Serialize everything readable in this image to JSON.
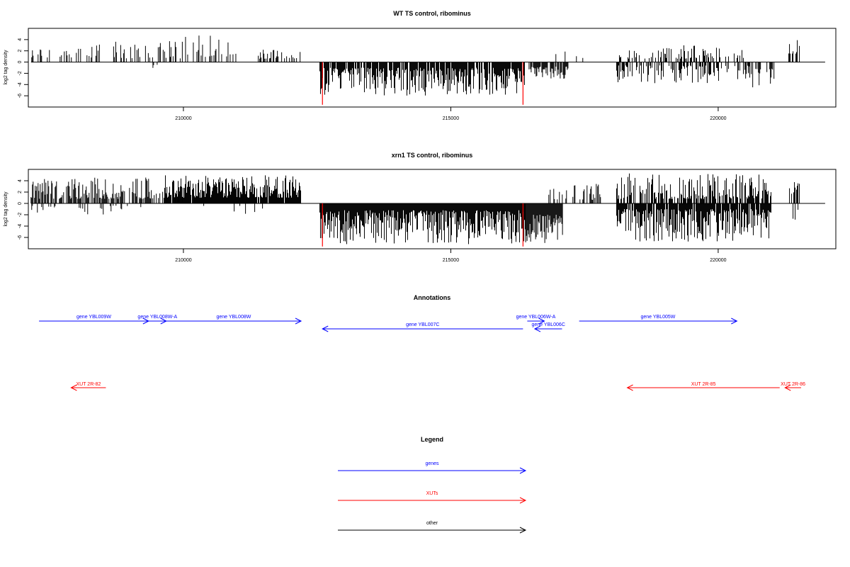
{
  "chart_data": [
    {
      "type": "bar",
      "title": "WT TS control, ribominus",
      "ylabel": "log2 tag density",
      "xlabel": "",
      "xlim": [
        207100,
        222200
      ],
      "ylim": [
        -8,
        6
      ],
      "x_ticks": [
        "210000",
        "215000",
        "220000"
      ],
      "x_tick_values": [
        210000,
        215000,
        220000
      ],
      "y_ticks": [
        "4",
        "2",
        "0",
        "-2",
        "-4",
        "-6"
      ],
      "y_tick_values": [
        4,
        2,
        0,
        -2,
        -4,
        -6
      ],
      "segments": [
        {
          "x0": 207150,
          "x1": 208350,
          "sign": 1,
          "min": 0.8,
          "max": 2.8,
          "density": 0.3,
          "seed": 11
        },
        {
          "x0": 208350,
          "x1": 210000,
          "sign": 1,
          "min": 0.6,
          "max": 3.8,
          "density": 0.25,
          "seed": 12
        },
        {
          "x0": 208900,
          "x1": 209900,
          "sign": -1,
          "min": 0.4,
          "max": 1.2,
          "density": 0.05,
          "seed": 13
        },
        {
          "x0": 210000,
          "x1": 211000,
          "sign": 1,
          "min": 0.8,
          "max": 4.8,
          "density": 0.3,
          "seed": 14
        },
        {
          "x0": 211400,
          "x1": 212200,
          "sign": 1,
          "min": 0.6,
          "max": 2.3,
          "density": 0.4,
          "seed": 15
        },
        {
          "x0": 212550,
          "x1": 216400,
          "sign": -1,
          "min": 1.0,
          "max": 6.0,
          "density": 0.85,
          "seed": 16
        },
        {
          "x0": 216450,
          "x1": 217200,
          "sign": -1,
          "min": 0.8,
          "max": 3.0,
          "density": 0.8,
          "seed": 17
        },
        {
          "x0": 216700,
          "x1": 217600,
          "sign": 1,
          "min": 0.6,
          "max": 2.0,
          "density": 0.08,
          "seed": 18
        },
        {
          "x0": 218100,
          "x1": 220500,
          "sign": 1,
          "min": 0.6,
          "max": 3.0,
          "density": 0.35,
          "seed": 19
        },
        {
          "x0": 218100,
          "x1": 220600,
          "sign": -1,
          "min": 0.6,
          "max": 3.8,
          "density": 0.45,
          "seed": 20
        },
        {
          "x0": 220500,
          "x1": 221050,
          "sign": -1,
          "min": 1.0,
          "max": 4.5,
          "density": 0.5,
          "seed": 21
        },
        {
          "x0": 221320,
          "x1": 221520,
          "sign": 1,
          "min": 1.5,
          "max": 5.0,
          "density": 0.5,
          "seed": 22
        }
      ],
      "markers": [
        {
          "x": 212600,
          "y": -7.6,
          "color": "#ff0000"
        },
        {
          "x": 216350,
          "y": -7.6,
          "color": "#ff0000"
        }
      ]
    },
    {
      "type": "bar",
      "title": "xrn1 TS control, ribominus",
      "ylabel": "log2 tag density",
      "xlabel": "",
      "xlim": [
        207100,
        222200
      ],
      "ylim": [
        -8,
        6
      ],
      "x_ticks": [
        "210000",
        "215000",
        "220000"
      ],
      "x_tick_values": [
        210000,
        215000,
        220000
      ],
      "y_ticks": [
        "4",
        "2",
        "0",
        "-2",
        "-4",
        "-6"
      ],
      "y_tick_values": [
        4,
        2,
        0,
        -2,
        -4,
        -6
      ],
      "segments": [
        {
          "x0": 207150,
          "x1": 209400,
          "sign": 1,
          "min": 0.8,
          "max": 4.6,
          "density": 0.7,
          "seed": 31
        },
        {
          "x0": 207150,
          "x1": 209400,
          "sign": -1,
          "min": 0.4,
          "max": 2.0,
          "density": 0.1,
          "seed": 32
        },
        {
          "x0": 209400,
          "x1": 210000,
          "sign": 1,
          "min": 0.8,
          "max": 3.0,
          "density": 0.4,
          "seed": 33
        },
        {
          "x0": 209650,
          "x1": 212200,
          "sign": 1,
          "min": 1.0,
          "max": 5.0,
          "density": 0.95,
          "seed": 34
        },
        {
          "x0": 210300,
          "x1": 212000,
          "sign": -1,
          "min": 0.4,
          "max": 2.6,
          "density": 0.05,
          "seed": 35
        },
        {
          "x0": 212550,
          "x1": 216400,
          "sign": -1,
          "min": 1.2,
          "max": 7.2,
          "density": 1.0,
          "seed": 36
        },
        {
          "x0": 216400,
          "x1": 217100,
          "sign": -1,
          "min": 2.0,
          "max": 7.0,
          "density": 1.0,
          "seed": 37
        },
        {
          "x0": 216700,
          "x1": 217800,
          "sign": 1,
          "min": 0.6,
          "max": 4.0,
          "density": 0.3,
          "seed": 38
        },
        {
          "x0": 218100,
          "x1": 221000,
          "sign": 1,
          "min": 0.8,
          "max": 5.3,
          "density": 0.7,
          "seed": 39
        },
        {
          "x0": 218100,
          "x1": 221000,
          "sign": -1,
          "min": 1.0,
          "max": 6.8,
          "density": 0.9,
          "seed": 40
        },
        {
          "x0": 221320,
          "x1": 221520,
          "sign": 1,
          "min": 1.5,
          "max": 4.5,
          "density": 0.5,
          "seed": 41
        },
        {
          "x0": 221320,
          "x1": 221520,
          "sign": -1,
          "min": 1.0,
          "max": 4.0,
          "density": 0.5,
          "seed": 42
        }
      ],
      "markers": [
        {
          "x": 212600,
          "y": -7.6,
          "color": "#ff0000"
        },
        {
          "x": 216350,
          "y": -7.6,
          "color": "#ff0000"
        }
      ]
    }
  ],
  "annotations": {
    "title": "Annotations",
    "genes": [
      {
        "label": "gene YBL009W",
        "start": 207300,
        "end": 209350,
        "row": 1
      },
      {
        "label": "gene YBL008W-A",
        "start": 209350,
        "end": 209680,
        "row": 1
      },
      {
        "label": "gene YBL008W",
        "start": 209680,
        "end": 212200,
        "row": 1
      },
      {
        "label": "gene YBL007C",
        "start": 216350,
        "end": 212600,
        "row": 2
      },
      {
        "label": "gene YBL006W-A",
        "start": 216430,
        "end": 216750,
        "row": 1
      },
      {
        "label": "gene YBL006C",
        "start": 217080,
        "end": 216570,
        "row": 2
      },
      {
        "label": "gene YBL005W",
        "start": 217400,
        "end": 220350,
        "row": 1
      }
    ],
    "xuts": [
      {
        "label": "XUT 2R-82",
        "start": 208550,
        "end": 207900
      },
      {
        "label": "XUT 2R-85",
        "start": 221150,
        "end": 218300
      },
      {
        "label": "XUT 2R-86",
        "start": 221550,
        "end": 221250
      }
    ]
  },
  "legend": {
    "title": "Legend",
    "items": [
      {
        "label": "genes",
        "color": "#0000ff"
      },
      {
        "label": "XUTs",
        "color": "#ff0000"
      },
      {
        "label": "other",
        "color": "#000000"
      }
    ]
  },
  "colors": {
    "gene": "#0000ff",
    "xut": "#ff0000",
    "axis": "#000000",
    "bar": "#000000"
  }
}
